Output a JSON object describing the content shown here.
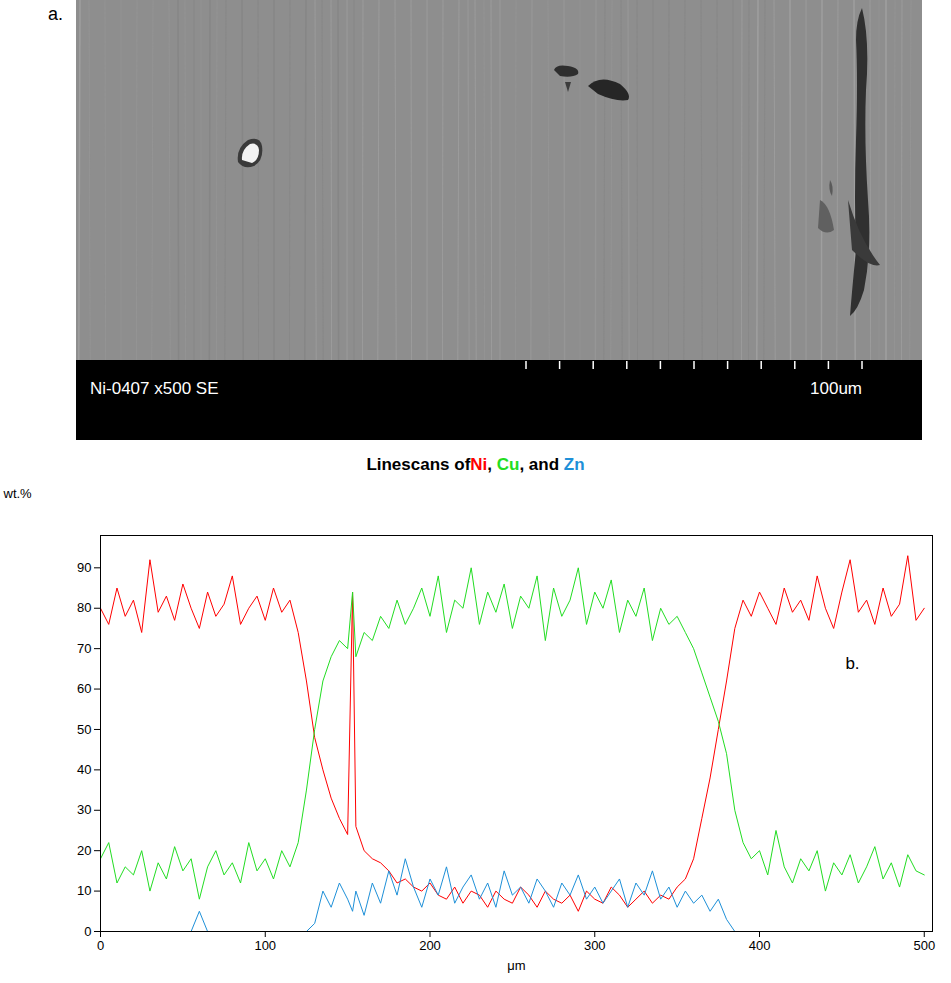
{
  "image": {
    "label": "a.",
    "caption": "Ni-0407 x500 SE",
    "scale_label": "100um"
  },
  "chart_data": {
    "type": "line",
    "title": "Linescans ofNi, Cu, and Zn",
    "x_label": "μm",
    "y_label": "wt.%",
    "annotation": "b.",
    "x": [
      0,
      5,
      10,
      15,
      20,
      25,
      30,
      35,
      40,
      45,
      50,
      55,
      60,
      65,
      70,
      75,
      80,
      85,
      90,
      95,
      100,
      105,
      110,
      115,
      120,
      125,
      130,
      135,
      140,
      145,
      150,
      153,
      155,
      160,
      165,
      170,
      175,
      180,
      185,
      190,
      195,
      200,
      205,
      210,
      215,
      220,
      225,
      230,
      235,
      240,
      245,
      250,
      255,
      260,
      265,
      270,
      275,
      280,
      285,
      290,
      295,
      300,
      305,
      310,
      315,
      320,
      325,
      330,
      335,
      340,
      345,
      350,
      355,
      360,
      365,
      370,
      375,
      380,
      385,
      390,
      395,
      400,
      405,
      410,
      415,
      420,
      425,
      430,
      435,
      440,
      445,
      450,
      455,
      460,
      465,
      470,
      475,
      480,
      485,
      490,
      495,
      500
    ],
    "series": [
      {
        "name": "Ni",
        "color": "#ff0000",
        "values": [
          80,
          76,
          85,
          78,
          82,
          74,
          92,
          79,
          83,
          77,
          86,
          80,
          75,
          84,
          78,
          81,
          88,
          76,
          80,
          83,
          77,
          85,
          79,
          82,
          74,
          62,
          48,
          40,
          33,
          28,
          24,
          84,
          26,
          20,
          18,
          17,
          15,
          12,
          13,
          11,
          10,
          12,
          9,
          8,
          11,
          7,
          10,
          9,
          6,
          10,
          8,
          7,
          11,
          9,
          6,
          10,
          8,
          7,
          9,
          5,
          10,
          8,
          7,
          11,
          9,
          6,
          8,
          10,
          7,
          9,
          8,
          11,
          13,
          18,
          28,
          38,
          50,
          62,
          75,
          82,
          78,
          84,
          80,
          76,
          85,
          79,
          82,
          77,
          88,
          80,
          75,
          84,
          92,
          79,
          82,
          76,
          85,
          78,
          81,
          93,
          77,
          80
        ]
      },
      {
        "name": "Cu",
        "color": "#22dd22",
        "values": [
          18,
          22,
          12,
          16,
          14,
          20,
          10,
          17,
          13,
          21,
          15,
          18,
          8,
          16,
          20,
          14,
          17,
          12,
          22,
          15,
          18,
          13,
          20,
          16,
          22,
          35,
          50,
          62,
          68,
          72,
          70,
          84,
          68,
          74,
          72,
          78,
          75,
          82,
          76,
          80,
          85,
          78,
          88,
          74,
          82,
          80,
          90,
          76,
          84,
          79,
          86,
          75,
          83,
          80,
          88,
          72,
          85,
          78,
          82,
          90,
          76,
          84,
          80,
          87,
          74,
          82,
          78,
          85,
          72,
          80,
          76,
          78,
          74,
          70,
          64,
          58,
          52,
          44,
          30,
          22,
          18,
          20,
          14,
          25,
          16,
          12,
          18,
          15,
          20,
          10,
          17,
          14,
          19,
          12,
          16,
          21,
          13,
          17,
          11,
          19,
          15,
          14
        ]
      },
      {
        "name": "Zn",
        "color": "#1e90d8",
        "values": [
          0,
          0,
          0,
          0,
          0,
          0,
          0,
          0,
          0,
          0,
          0,
          0,
          5,
          0,
          0,
          0,
          0,
          0,
          0,
          0,
          0,
          0,
          0,
          0,
          0,
          0,
          2,
          10,
          6,
          12,
          8,
          5,
          10,
          4,
          12,
          7,
          15,
          9,
          18,
          11,
          6,
          13,
          9,
          16,
          7,
          11,
          14,
          8,
          12,
          6,
          15,
          9,
          11,
          7,
          13,
          10,
          6,
          12,
          9,
          14,
          8,
          11,
          7,
          10,
          13,
          6,
          12,
          9,
          15,
          8,
          11,
          6,
          10,
          7,
          9,
          5,
          8,
          3,
          0,
          0,
          0,
          0,
          0,
          0,
          0,
          0,
          0,
          0,
          0,
          0,
          0,
          0,
          0,
          0,
          0,
          0,
          0,
          0,
          0,
          0,
          0,
          0
        ]
      }
    ],
    "xlim": [
      0,
      505
    ],
    "ylim": [
      0,
      98
    ],
    "xticks": [
      0,
      100,
      200,
      300,
      400,
      500
    ],
    "yticks": [
      0,
      10,
      20,
      30,
      40,
      50,
      60,
      70,
      80,
      90
    ],
    "grid": false
  }
}
